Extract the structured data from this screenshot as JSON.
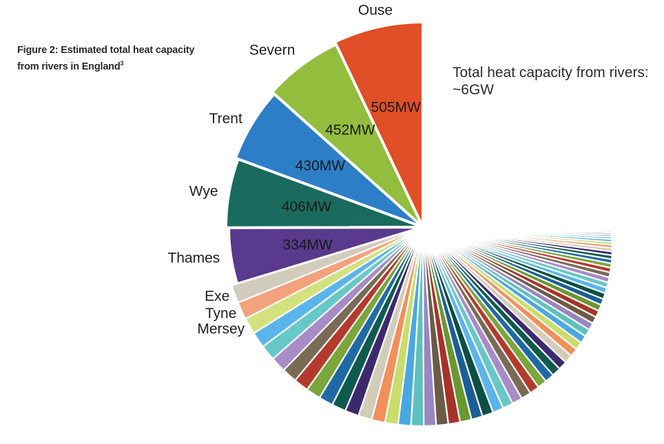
{
  "caption": {
    "text": "Figure 2: Estimated total heat capacity from rivers in England",
    "superscript": "3"
  },
  "total_note": "Total heat capacity from rivers: ~6GW",
  "chart_data": {
    "type": "pie",
    "title": "Figure 2: Estimated total heat capacity from rivers in England",
    "units": "MW",
    "series": [
      {
        "label": "Ouse",
        "value": 505,
        "value_label": "505MW",
        "color": "#e04f27"
      },
      {
        "label": "Severn",
        "value": 452,
        "value_label": "452MW",
        "color": "#92bd3d"
      },
      {
        "label": "Trent",
        "value": 430,
        "value_label": "430MW",
        "color": "#2c7fc7"
      },
      {
        "label": "Wye",
        "value": 406,
        "value_label": "406MW",
        "color": "#1a6b5e"
      },
      {
        "label": "Thames",
        "value": 334,
        "value_label": "334MW",
        "color": "#5a3a8c"
      },
      {
        "label": "Exe",
        "value": 105,
        "color": "#d2ccbd"
      },
      {
        "label": "Tyne",
        "value": 100,
        "color": "#f3a27c"
      },
      {
        "label": "Mersey",
        "value": 96,
        "color": "#d3e27e"
      }
    ],
    "unlabeled_slices": {
      "count": 60,
      "start_value": 92,
      "end_value": 6,
      "colors": [
        "#5bb5ea",
        "#67c8c8",
        "#a88bc7",
        "#7a6b56",
        "#b53a2e",
        "#7aa63a",
        "#1f6aa5",
        "#0f5a4f",
        "#3d2a6e",
        "#d3ccb9",
        "#f1905a",
        "#c9dd6b",
        "#4aa8e0",
        "#5ec1bd",
        "#9a86c0",
        "#6b5c48",
        "#a63328",
        "#6a9830",
        "#1a5f95",
        "#0d4f45"
      ]
    },
    "ring_gap": "top-right"
  }
}
